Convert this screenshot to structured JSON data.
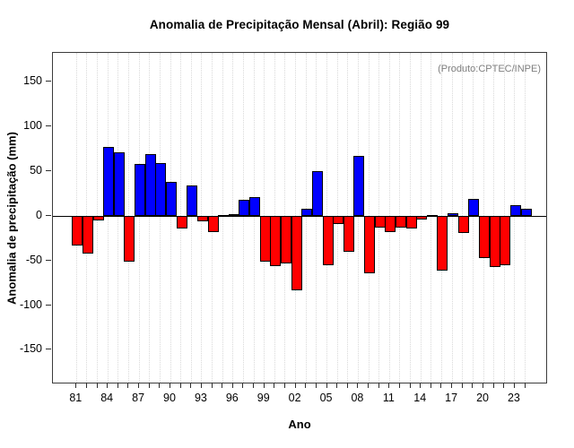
{
  "title": "Anomalia de Precipitação Mensal (Abril): Região 99",
  "watermark": "(Produto:CPTEC/INPE)",
  "chart_data": {
    "type": "bar",
    "title": "Anomalia de Precipitação Mensal (Abril): Região 99",
    "xlabel": "Ano",
    "ylabel": "Anomalia de precipitação (mm)",
    "ylim": [
      -190,
      183
    ],
    "yticks": [
      150,
      100,
      50,
      0,
      -50,
      -100,
      -150
    ],
    "ytick_labels": [
      "150",
      "100",
      "50",
      "0",
      "-50",
      "-100",
      "-150"
    ],
    "grid": "vertical-dotted-every-year",
    "legend": "none",
    "annotation": "(Produto:CPTEC/INPE)",
    "positive_color": "#0000ff",
    "negative_color": "#ff0000",
    "bar_border_color": "#000000",
    "years": [
      1981,
      1982,
      1983,
      1984,
      1985,
      1986,
      1987,
      1988,
      1989,
      1990,
      1991,
      1992,
      1993,
      1994,
      1995,
      1996,
      1997,
      1998,
      1999,
      2000,
      2001,
      2002,
      2003,
      2004,
      2005,
      2006,
      2007,
      2008,
      2009,
      2010,
      2011,
      2012,
      2013,
      2014,
      2015,
      2016,
      2017,
      2018,
      2019,
      2020,
      2021,
      2022,
      2023,
      2024
    ],
    "values": [
      -33,
      -42,
      -5,
      77,
      71,
      -51,
      58,
      69,
      59,
      38,
      -14,
      34,
      -6,
      -18,
      1,
      2,
      18,
      21,
      -51,
      -56,
      -53,
      -83,
      8,
      50,
      -55,
      -9,
      -40,
      67,
      -64,
      -13,
      -18,
      -13,
      -14,
      -4,
      1,
      -61,
      3,
      -19,
      19,
      -47,
      -57,
      -55,
      12,
      8
    ],
    "x_tick_labels": [
      "81",
      "84",
      "87",
      "90",
      "93",
      "96",
      "99",
      "02",
      "05",
      "08",
      "11",
      "14",
      "17",
      "20",
      "23"
    ],
    "x_label_step": 3
  }
}
